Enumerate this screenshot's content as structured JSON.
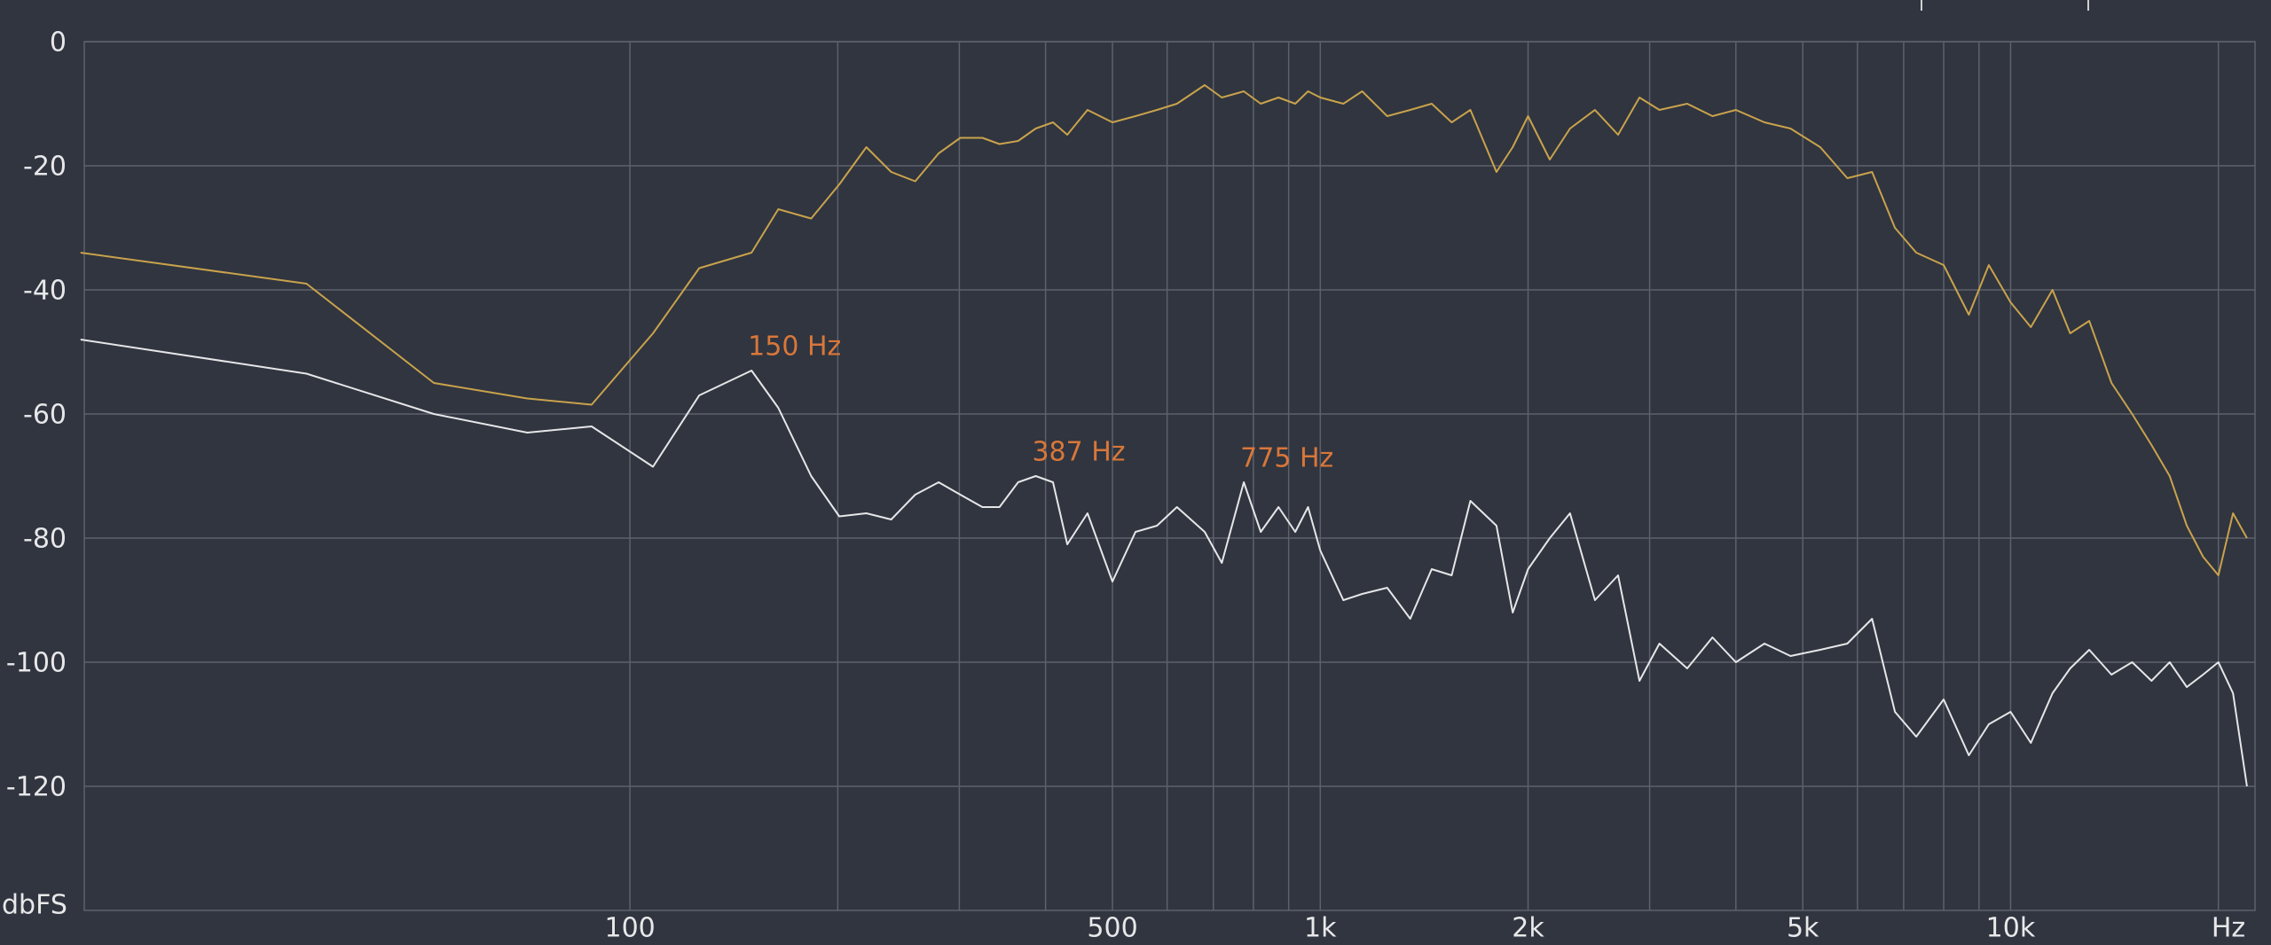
{
  "chart_data": {
    "type": "line",
    "log_x": true,
    "grid": true,
    "x_label": "Hz",
    "y_label": "dbFS",
    "xlim": [
      16.2,
      22600
    ],
    "ylim": [
      -140,
      0
    ],
    "xticks": [
      100,
      500,
      {
        "value": 1000,
        "label": "1k"
      },
      {
        "value": 2000,
        "label": "2k"
      },
      {
        "value": 5000,
        "label": "5k"
      },
      {
        "value": 10000,
        "label": "10k"
      }
    ],
    "xgrid_minor": [
      200,
      300,
      400,
      600,
      700,
      800,
      900,
      3000,
      4000,
      6000,
      7000,
      8000,
      9000,
      20000
    ],
    "yticks": [
      0,
      -20,
      -40,
      -60,
      -80,
      -100,
      -120
    ],
    "x": [
      16,
      34,
      52,
      71,
      88,
      108,
      126,
      150,
      164,
      183,
      201,
      220,
      239,
      259,
      280,
      301,
      324,
      343,
      365,
      387,
      410,
      430,
      460,
      500,
      540,
      580,
      620,
      680,
      720,
      775,
      820,
      870,
      920,
      960,
      1000,
      1080,
      1150,
      1250,
      1350,
      1450,
      1550,
      1650,
      1800,
      1900,
      2000,
      2150,
      2300,
      2500,
      2700,
      2900,
      3100,
      3400,
      3700,
      4000,
      4400,
      4800,
      5300,
      5800,
      6300,
      6800,
      7300,
      8000,
      8700,
      9300,
      10000,
      10700,
      11500,
      12200,
      13000,
      14000,
      15000,
      16000,
      17000,
      18000,
      19000,
      20000,
      21000,
      22000
    ],
    "series": [
      {
        "color": "#c9a24c",
        "values": [
          -34,
          -39,
          -55,
          -57.5,
          -58.5,
          -47,
          -36.5,
          -34,
          -27,
          -28.5,
          -23,
          -17,
          -21,
          -22.5,
          -18,
          -15.5,
          -15.5,
          -16.5,
          -16,
          -14,
          -13,
          -15,
          -11,
          -13,
          -12,
          -11,
          -10,
          -7,
          -9,
          -8,
          -10,
          -9,
          -10,
          -8,
          -9,
          -10,
          -8,
          -12,
          -11,
          -10,
          -13,
          -11,
          -21,
          -17,
          -12,
          -19,
          -14,
          -11,
          -15,
          -9,
          -11,
          -10,
          -12,
          -11,
          -13,
          -14,
          -17,
          -22,
          -21,
          -30,
          -34,
          -36,
          -44,
          -36,
          -42,
          -46,
          -40,
          -47,
          -45,
          -55,
          -60,
          -65,
          -70,
          -78,
          -83,
          -86,
          -76,
          -80
        ]
      },
      {
        "color": "#e6e6e8",
        "values": [
          -48,
          -53.5,
          -60,
          -63,
          -62,
          -68.5,
          -57,
          -53,
          -59,
          -70,
          -76.5,
          -76,
          -77,
          -73,
          -71,
          -73,
          -75,
          -75,
          -71,
          -70,
          -71,
          -81,
          -76,
          -87,
          -79,
          -78,
          -75,
          -79,
          -84,
          -71,
          -79,
          -75,
          -79,
          -75,
          -82,
          -90,
          -89,
          -88,
          -93,
          -85,
          -86,
          -74,
          -78,
          -92,
          -85,
          -80,
          -76,
          -90,
          -86,
          -103,
          -97,
          -101,
          -96,
          -100,
          -97,
          -99,
          -98,
          -97,
          -93,
          -108,
          -112,
          -106,
          -115,
          -110,
          -108,
          -113,
          -105,
          -101,
          -98,
          -102,
          -100,
          -103,
          -100,
          -104,
          -102,
          -100,
          -105,
          -120
        ]
      }
    ],
    "annotations": [
      {
        "text": "150 Hz",
        "x": 150,
        "y": -53,
        "color": "#d9773a"
      },
      {
        "text": "387 Hz",
        "x": 387,
        "y": -70,
        "color": "#d9773a"
      },
      {
        "text": "775 Hz",
        "x": 775,
        "y": -71,
        "color": "#d9773a"
      }
    ]
  }
}
